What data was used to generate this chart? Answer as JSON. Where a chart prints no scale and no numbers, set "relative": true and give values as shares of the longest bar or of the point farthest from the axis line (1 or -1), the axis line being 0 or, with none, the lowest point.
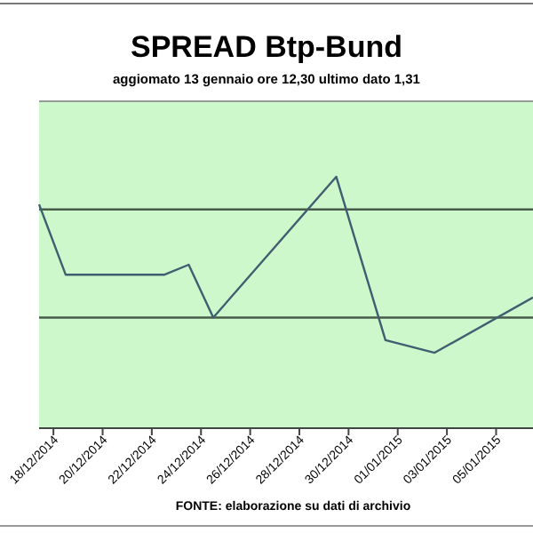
{
  "chart_data": {
    "type": "line",
    "title": "SPREAD Btp-Bund",
    "subtitle": "aggiomato 13 gennaio ore 12,30  ultimo dato  1,31",
    "annotations": [
      "FONTE: elaborazione su dati di archivio"
    ],
    "relative": true,
    "x": [
      "2014-12-17T10:00",
      "2014-12-18T12:00",
      "2014-12-22T12:00",
      "2014-12-23T12:00",
      "2014-12-24T12:00",
      "2014-12-29T12:00",
      "2014-12-31T12:00",
      "2015-01-02T12:00",
      "2015-01-06T12:00"
    ],
    "series": [
      {
        "color": "#3f5f70",
        "values": [
          0.89,
          0.61,
          0.61,
          0.65,
          0.44,
          1,
          0.35,
          0.3,
          0.52
        ]
      }
    ],
    "xlim": [
      "2014-12-17T10:00",
      "2015-01-06T12:00"
    ],
    "xticks": [
      {
        "value": "2014-12-18",
        "label": "18/12/2014"
      },
      {
        "value": "2014-12-20",
        "label": "20/12/2014"
      },
      {
        "value": "2014-12-22",
        "label": "22/12/2014"
      },
      {
        "value": "2014-12-24",
        "label": "24/12/2014"
      },
      {
        "value": "2014-12-26",
        "label": "26/12/2014"
      },
      {
        "value": "2014-12-28",
        "label": "28/12/2014"
      },
      {
        "value": "2014-12-30",
        "label": "30/12/2014"
      },
      {
        "value": "2015-01-01",
        "label": "01/01/2015"
      },
      {
        "value": "2015-01-03",
        "label": "03/01/2015"
      },
      {
        "value": "2015-01-05",
        "label": "05/01/2015"
      }
    ],
    "ref_lines": [
      {
        "axis": "y",
        "value": 0.87,
        "color": "#4a5a4a"
      },
      {
        "axis": "y",
        "value": 0.44,
        "color": "#4a5a4a"
      }
    ],
    "grid": false,
    "marker": "none",
    "line_style": "solid"
  }
}
